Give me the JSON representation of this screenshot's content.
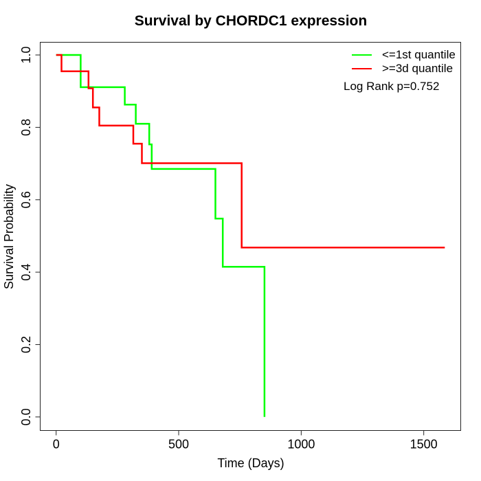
{
  "title": "Survival by CHORDC1 expression",
  "axes": {
    "x": {
      "label": "Time (Days)",
      "ticks": [
        {
          "label": "0",
          "value": 0
        },
        {
          "label": "500",
          "value": 500
        },
        {
          "label": "1000",
          "value": 1000
        },
        {
          "label": "1500",
          "value": 1500
        }
      ]
    },
    "y": {
      "label": "Survival Probability",
      "ticks": [
        {
          "label": "1.0",
          "value": 1.0
        },
        {
          "label": "0.8",
          "value": 0.8
        },
        {
          "label": "0.6",
          "value": 0.6
        },
        {
          "label": "0.4",
          "value": 0.4
        },
        {
          "label": "0.2",
          "value": 0.2
        },
        {
          "label": "0.0",
          "value": 0.0
        }
      ]
    }
  },
  "legend": {
    "items": [
      {
        "label": "<=1st quantile",
        "color": "#00ff00"
      },
      {
        "label": ">=3d quantile",
        "color": "#ff0000"
      }
    ],
    "note": "Log Rank p=0.752"
  },
  "chart_data": {
    "type": "line",
    "subtype": "kaplan-meier-step-survival",
    "title": "Survival by CHORDC1 expression",
    "xlabel": "Time (Days)",
    "ylabel": "Survival Probability",
    "xlim": [
      0,
      1650
    ],
    "ylim": [
      0,
      1
    ],
    "x_ticks": [
      0,
      500,
      1000,
      1500
    ],
    "y_ticks": [
      0.0,
      0.2,
      0.4,
      0.6,
      0.8,
      1.0
    ],
    "grid": false,
    "legend_position": "top-right",
    "annotation": "Log Rank p=0.752",
    "series": [
      {
        "name": "<=1st quantile",
        "color": "#00ff00",
        "steps": [
          [
            0,
            1.0
          ],
          [
            100,
            0.911
          ],
          [
            280,
            0.863
          ],
          [
            325,
            0.81
          ],
          [
            380,
            0.753
          ],
          [
            390,
            0.685
          ],
          [
            650,
            0.548
          ],
          [
            680,
            0.415
          ],
          [
            850,
            0.0
          ]
        ],
        "end_time": 850
      },
      {
        "name": ">=3d quantile",
        "color": "#ff0000",
        "steps": [
          [
            0,
            1.0
          ],
          [
            22,
            0.955
          ],
          [
            132,
            0.908
          ],
          [
            150,
            0.855
          ],
          [
            176,
            0.805
          ],
          [
            315,
            0.755
          ],
          [
            350,
            0.701
          ],
          [
            757,
            0.468
          ]
        ],
        "end_time": 1586
      }
    ]
  }
}
